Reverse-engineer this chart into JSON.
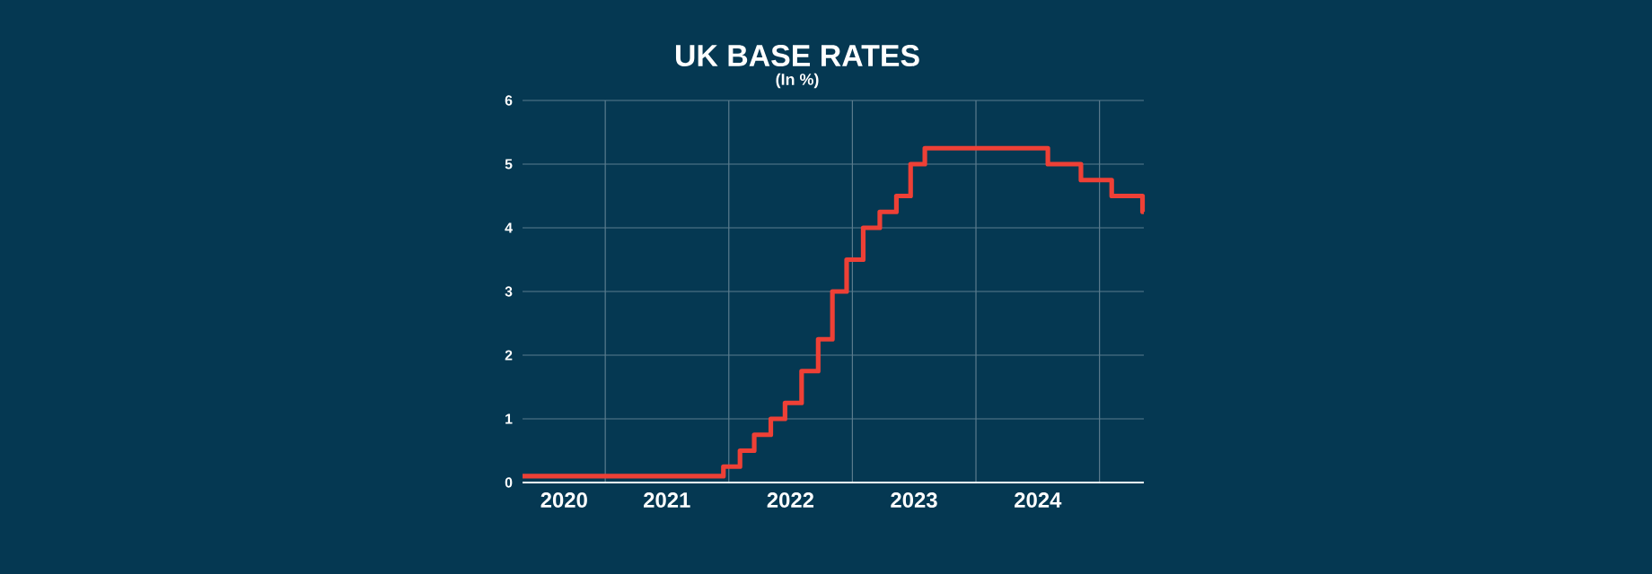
{
  "chart_data": {
    "type": "step",
    "title": "UK BASE RATES",
    "subtitle": "(In %)",
    "x": [
      "2020-05-01",
      "2021-12-16",
      "2022-02-03",
      "2022-03-17",
      "2022-05-05",
      "2022-06-16",
      "2022-08-04",
      "2022-09-22",
      "2022-11-03",
      "2022-12-15",
      "2023-02-02",
      "2023-03-23",
      "2023-05-11",
      "2023-06-22",
      "2023-08-03",
      "2024-08-01",
      "2024-11-07",
      "2025-02-06",
      "2025-05-08",
      "2025-05-12"
    ],
    "series": [
      {
        "color": "#ee4036",
        "values": [
          0.1,
          0.25,
          0.5,
          0.75,
          1.0,
          1.25,
          1.75,
          2.25,
          3.0,
          3.5,
          4.0,
          4.25,
          4.5,
          5.0,
          5.25,
          5.0,
          4.75,
          4.5,
          4.25,
          4.25
        ]
      }
    ],
    "xlim": [
      "2020-05-01",
      "2025-05-12"
    ],
    "xticks": [
      {
        "value": "2021-01-01",
        "label": null
      },
      {
        "value": "2022-01-01",
        "label": null
      },
      {
        "value": "2023-01-01",
        "label": null
      },
      {
        "value": "2024-01-01",
        "label": null
      },
      {
        "value": "2025-01-01",
        "label": null
      },
      {
        "value": "2020-09-01",
        "label": "2020"
      },
      {
        "value": "2021-07-02",
        "label": "2021"
      },
      {
        "value": "2022-07-02",
        "label": "2022"
      },
      {
        "value": "2023-07-02",
        "label": "2023"
      },
      {
        "value": "2024-07-02",
        "label": "2024"
      }
    ],
    "ylim": [
      0,
      6
    ],
    "yticks": [
      0,
      1,
      2,
      3,
      4,
      5,
      6
    ],
    "grid": true,
    "line_style": "solid",
    "marker": "none"
  }
}
